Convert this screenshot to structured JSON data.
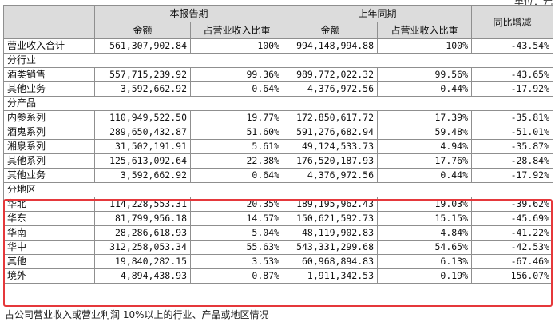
{
  "unit_note": "单位：元",
  "header": {
    "current_period": "本报告期",
    "prior_period": "上年同期",
    "yoy_change": "同比增减",
    "amount": "金额",
    "share": "占营业收入比重"
  },
  "total_row": {
    "label": "营业收入合计",
    "current_amount": "561,307,902.84",
    "current_share": "100%",
    "prior_amount": "994,148,994.88",
    "prior_share": "100%",
    "change": "-43.54%"
  },
  "sections": [
    {
      "title": "分行业",
      "rows": [
        {
          "label": "酒类销售",
          "current_amount": "557,715,239.92",
          "current_share": "99.36%",
          "prior_amount": "989,772,022.32",
          "prior_share": "99.56%",
          "change": "-43.65%"
        },
        {
          "label": "其他业务",
          "current_amount": "3,592,662.92",
          "current_share": "0.64%",
          "prior_amount": "4,376,972.56",
          "prior_share": "0.44%",
          "change": "-17.92%"
        }
      ]
    },
    {
      "title": "分产品",
      "rows": [
        {
          "label": "内参系列",
          "current_amount": "110,949,522.50",
          "current_share": "19.77%",
          "prior_amount": "172,850,617.72",
          "prior_share": "17.39%",
          "change": "-35.81%"
        },
        {
          "label": "酒鬼系列",
          "current_amount": "289,650,432.87",
          "current_share": "51.60%",
          "prior_amount": "591,276,682.94",
          "prior_share": "59.48%",
          "change": "-51.01%"
        },
        {
          "label": "湘泉系列",
          "current_amount": "31,502,191.91",
          "current_share": "5.61%",
          "prior_amount": "49,124,533.73",
          "prior_share": "4.94%",
          "change": "-35.87%"
        },
        {
          "label": "其他系列",
          "current_amount": "125,613,092.64",
          "current_share": "22.38%",
          "prior_amount": "176,520,187.93",
          "prior_share": "17.76%",
          "change": "-28.84%"
        },
        {
          "label": "其他业务",
          "current_amount": "3,592,662.92",
          "current_share": "0.64%",
          "prior_amount": "4,376,972.56",
          "prior_share": "0.44%",
          "change": "-17.92%"
        }
      ]
    },
    {
      "title": "分地区",
      "rows": [
        {
          "label": "华北",
          "current_amount": "114,228,553.31",
          "current_share": "20.35%",
          "prior_amount": "189,195,962.43",
          "prior_share": "19.03%",
          "change": "-39.62%"
        },
        {
          "label": "华东",
          "current_amount": "81,799,956.18",
          "current_share": "14.57%",
          "prior_amount": "150,621,592.73",
          "prior_share": "15.15%",
          "change": "-45.69%"
        },
        {
          "label": "华南",
          "current_amount": "28,286,618.93",
          "current_share": "5.04%",
          "prior_amount": "48,119,902.83",
          "prior_share": "4.84%",
          "change": "-41.22%"
        },
        {
          "label": "华中",
          "current_amount": "312,258,053.34",
          "current_share": "55.63%",
          "prior_amount": "543,331,299.68",
          "prior_share": "54.65%",
          "change": "-42.53%"
        },
        {
          "label": "其他",
          "current_amount": "19,840,282.15",
          "current_share": "3.53%",
          "prior_amount": "60,968,894.83",
          "prior_share": "6.13%",
          "change": "-67.46%"
        },
        {
          "label": "境外",
          "current_amount": "4,894,438.93",
          "current_share": "0.87%",
          "prior_amount": "1,911,342.53",
          "prior_share": "0.19%",
          "change": "156.07%"
        }
      ]
    }
  ],
  "highlight_color": "#e5383b",
  "footnote": "占公司营业收入或营业利润 10%以上的行业、产品或地区情况"
}
